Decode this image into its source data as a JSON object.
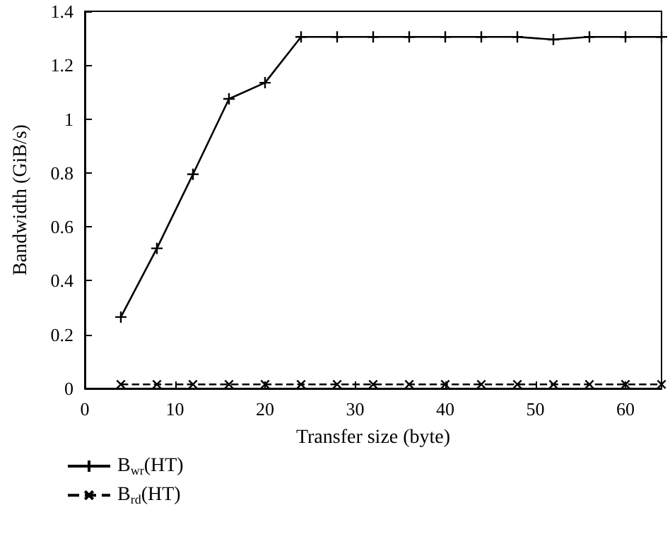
{
  "chart_data": {
    "type": "line",
    "xlabel": "Transfer size (byte)",
    "ylabel": "Bandwidth (GiB/s)",
    "xlim": [
      0,
      64
    ],
    "xticks": [
      0,
      10,
      20,
      30,
      40,
      50,
      60
    ],
    "ylim": [
      0,
      1.4
    ],
    "yticks": [
      0,
      0.2,
      0.4,
      0.6,
      0.8,
      1,
      1.2,
      1.4
    ],
    "grid": false,
    "legend": "bottom left",
    "marker": "cross",
    "x": [
      4,
      8,
      12,
      16,
      20,
      24,
      28,
      32,
      36,
      40,
      44,
      48,
      52,
      56,
      60,
      64
    ],
    "series": [
      {
        "name": "B$_{wr}$(HT)",
        "color": "#000000",
        "line_style": "solid",
        "values": [
          0.265,
          0.52,
          0.795,
          1.075,
          1.135,
          1.305,
          1.305,
          1.305,
          1.305,
          1.305,
          1.305,
          1.305,
          1.295,
          1.305,
          1.305,
          1.305
        ]
      },
      {
        "name": "B$_{rd}$(HT)",
        "color": "#000000",
        "line_style": "dashed",
        "values": [
          0.015,
          0.015,
          0.015,
          0.015,
          0.015,
          0.015,
          0.015,
          0.015,
          0.015,
          0.015,
          0.015,
          0.015,
          0.015,
          0.015,
          0.015,
          0.015
        ]
      }
    ]
  }
}
